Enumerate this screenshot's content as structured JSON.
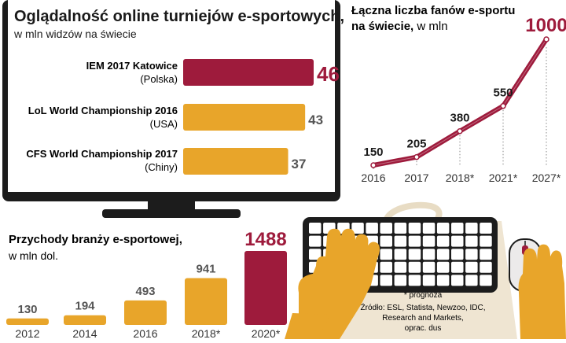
{
  "colors": {
    "accent": "#9e1b3c",
    "orange": "#e8a52a",
    "dark": "#1c1c1c",
    "grey": "#8a8a8a"
  },
  "viewership": {
    "title": "Oglądalność online turniejów e-sportowych,",
    "subtitle": "w mln widzów na świecie",
    "chart_data": {
      "type": "bar",
      "orientation": "horizontal",
      "categories": [
        {
          "name": "IEM 2017 Katowice",
          "region": "(Polska)"
        },
        {
          "name": "LoL World Championship 2016",
          "region": "(USA)"
        },
        {
          "name": "CFS World Championship 2017",
          "region": "(Chiny)"
        }
      ],
      "values": [
        46,
        43,
        37
      ],
      "highlight_index": 0
    }
  },
  "fans": {
    "title_bold": "Łączna liczba fanów e-sportu",
    "title_bold2": "na świecie,",
    "title_unit": "w mln",
    "chart_data": {
      "type": "line",
      "x": [
        "2016",
        "2017",
        "2018*",
        "2021*",
        "2027*"
      ],
      "y": [
        150,
        205,
        380,
        550,
        1000
      ],
      "highlight_last": true
    }
  },
  "revenue": {
    "title": "Przychody branży e-sportowej,",
    "subtitle": "w mln dol.",
    "chart_data": {
      "type": "bar",
      "categories": [
        "2012",
        "2014",
        "2016",
        "2018*",
        "2020*"
      ],
      "values": [
        130,
        194,
        493,
        941,
        1488
      ],
      "highlight_index": 4
    }
  },
  "footnote": {
    "note": "* prognoza",
    "sources": [
      "Źródło: ESL, Statista, Newzoo, IDC,",
      "Research and Markets,",
      "oprac. dus"
    ]
  }
}
